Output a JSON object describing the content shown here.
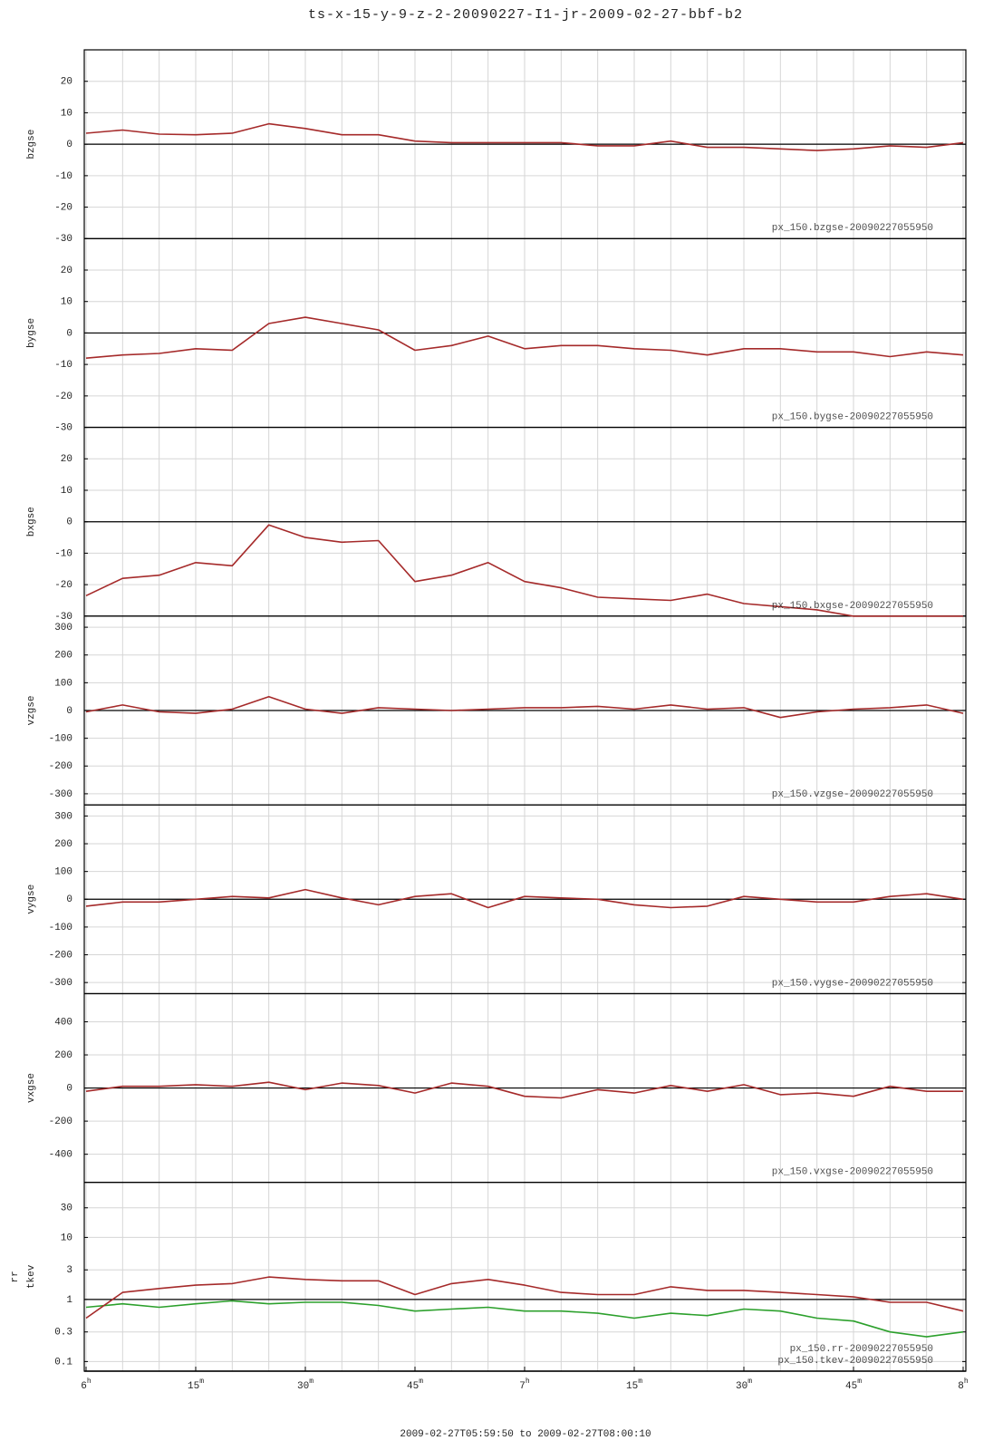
{
  "chart_data": {
    "type": "line",
    "title": "ts-x-15-y-9-z-2-20090227-I1-jr-2009-02-27-bbf-b2",
    "xlabel": "2009-02-27T05:59:50 to 2009-02-27T08:00:10",
    "x": [
      0,
      5,
      10,
      15,
      20,
      25,
      30,
      35,
      40,
      45,
      50,
      55,
      60,
      65,
      70,
      75,
      80,
      85,
      90,
      95,
      100,
      105,
      110,
      115,
      120
    ],
    "xlim": [
      0,
      120
    ],
    "xticks": [
      {
        "value": 0,
        "label": "6h"
      },
      {
        "value": 15,
        "label": "15m"
      },
      {
        "value": 30,
        "label": "30m"
      },
      {
        "value": 45,
        "label": "45m"
      },
      {
        "value": 60,
        "label": "7h"
      },
      {
        "value": 75,
        "label": "15m"
      },
      {
        "value": 90,
        "label": "30m"
      },
      {
        "value": 105,
        "label": "45m"
      },
      {
        "value": 120,
        "label": "8h"
      }
    ],
    "minor_xticks": [
      5,
      10,
      20,
      25,
      35,
      40,
      50,
      55,
      65,
      70,
      80,
      85,
      95,
      100,
      110,
      115
    ],
    "grid": true,
    "panels": [
      {
        "ylabels": [
          "bzgse"
        ],
        "ylim": [
          -30,
          30
        ],
        "yticks": [
          -30,
          -20,
          -10,
          0,
          10,
          20
        ],
        "hline": 0,
        "log": false,
        "series": [
          {
            "name": "px_150.bzgse-20090227055950",
            "color": "#a52a2a",
            "values": [
              3.5,
              4.5,
              3.2,
              3,
              3.5,
              6.5,
              5,
              3,
              3,
              1,
              0.5,
              0.5,
              0.5,
              0.5,
              -0.5,
              -0.5,
              1,
              -1,
              -1,
              -1.5,
              -2,
              -1.5,
              -0.5,
              -1,
              0.5
            ]
          }
        ]
      },
      {
        "ylabels": [
          "bygse"
        ],
        "ylim": [
          -30,
          30
        ],
        "yticks": [
          -30,
          -20,
          -10,
          0,
          10,
          20
        ],
        "hline": 0,
        "log": false,
        "series": [
          {
            "name": "px_150.bygse-20090227055950",
            "color": "#a52a2a",
            "values": [
              -8,
              -7,
              -6.5,
              -5,
              -5.5,
              3,
              5,
              3,
              1,
              -5.5,
              -4,
              -1,
              -5,
              -4,
              -4,
              -5,
              -5.5,
              -7,
              -5,
              -5,
              -6,
              -6,
              -7.5,
              -6,
              -7
            ]
          }
        ]
      },
      {
        "ylabels": [
          "bxgse"
        ],
        "ylim": [
          -30,
          30
        ],
        "yticks": [
          -30,
          -20,
          -10,
          0,
          10,
          20
        ],
        "hline": 0,
        "log": false,
        "series": [
          {
            "name": "px_150.bxgse-20090227055950",
            "color": "#a52a2a",
            "values": [
              -23.5,
              -18,
              -17,
              -13,
              -14,
              -1,
              -5,
              -6.5,
              -6,
              -19,
              -17,
              -13,
              -19,
              -21,
              -24,
              -24.5,
              -25,
              -23,
              -26,
              -27,
              -28,
              -30,
              -30,
              -30,
              -30
            ]
          }
        ]
      },
      {
        "ylabels": [
          "vzgse"
        ],
        "ylim": [
          -340,
          340
        ],
        "yticks": [
          -300,
          -200,
          -100,
          0,
          100,
          200,
          300
        ],
        "hline": 0,
        "log": false,
        "series": [
          {
            "name": "px_150.vzgse-20090227055950",
            "color": "#a52a2a",
            "values": [
              -5,
              20,
              -5,
              -10,
              5,
              50,
              5,
              -10,
              10,
              5,
              0,
              5,
              10,
              10,
              15,
              5,
              20,
              5,
              10,
              -25,
              -5,
              5,
              10,
              20,
              -10
            ]
          }
        ]
      },
      {
        "ylabels": [
          "vygse"
        ],
        "ylim": [
          -340,
          340
        ],
        "yticks": [
          -300,
          -200,
          -100,
          0,
          100,
          200,
          300
        ],
        "hline": 0,
        "log": false,
        "series": [
          {
            "name": "px_150.vygse-20090227055950",
            "color": "#a52a2a",
            "values": [
              -25,
              -10,
              -10,
              0,
              10,
              5,
              35,
              5,
              -20,
              10,
              20,
              -30,
              10,
              5,
              0,
              -20,
              -30,
              -25,
              10,
              0,
              -10,
              -10,
              10,
              20,
              0
            ]
          }
        ]
      },
      {
        "ylabels": [
          "vxgse"
        ],
        "ylim": [
          -570,
          570
        ],
        "yticks": [
          -400,
          -200,
          0,
          200,
          400
        ],
        "hline": 0,
        "log": false,
        "series": [
          {
            "name": "px_150.vxgse-20090227055950",
            "color": "#a52a2a",
            "values": [
              -20,
              10,
              10,
              20,
              10,
              35,
              -10,
              30,
              15,
              -30,
              30,
              10,
              -50,
              -60,
              -10,
              -30,
              15,
              -20,
              20,
              -40,
              -30,
              -50,
              10,
              -20,
              -20
            ]
          }
        ]
      },
      {
        "ylabels": [
          "rr",
          "tkev"
        ],
        "ylim": [
          0.07,
          77
        ],
        "yticks": [
          0.1,
          0.3,
          1,
          3,
          10,
          30
        ],
        "hline": 1,
        "log": true,
        "series": [
          {
            "name": "px_150.rr-20090227055950",
            "color": "#2ca02c",
            "values": [
              0.75,
              0.85,
              0.75,
              0.85,
              0.95,
              0.85,
              0.9,
              0.9,
              0.8,
              0.65,
              0.7,
              0.75,
              0.65,
              0.65,
              0.6,
              0.5,
              0.6,
              0.55,
              0.7,
              0.65,
              0.5,
              0.45,
              0.3,
              0.25,
              0.3
            ]
          },
          {
            "name": "px_150.tkev-20090227055950",
            "color": "#a52a2a",
            "values": [
              0.5,
              1.3,
              1.5,
              1.7,
              1.8,
              2.3,
              2.1,
              2,
              2,
              1.2,
              1.8,
              2.1,
              1.7,
              1.3,
              1.2,
              1.2,
              1.6,
              1.4,
              1.4,
              1.3,
              1.2,
              1.1,
              0.9,
              0.9,
              0.65
            ]
          }
        ]
      }
    ]
  }
}
